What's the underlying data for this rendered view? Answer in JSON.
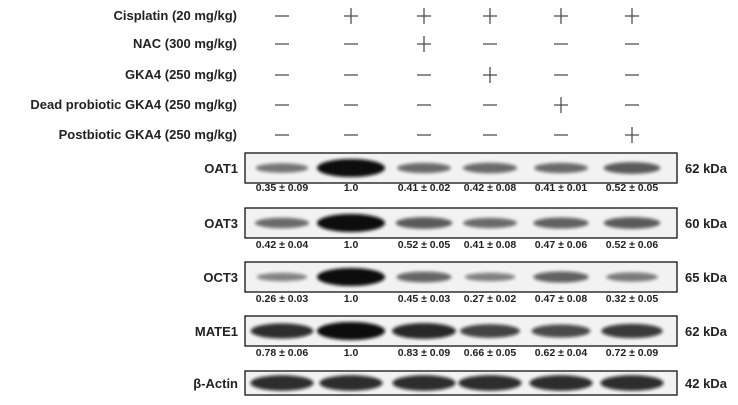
{
  "treatments": [
    {
      "label": "Cisplatin (20 mg/kg)",
      "signs": [
        "-",
        "+",
        "+",
        "+",
        "+",
        "+"
      ]
    },
    {
      "label": "NAC (300 mg/kg)",
      "signs": [
        "-",
        "-",
        "+",
        "-",
        "-",
        "-"
      ]
    },
    {
      "label": "GKA4 (250 mg/kg)",
      "signs": [
        "-",
        "-",
        "-",
        "+",
        "-",
        "-"
      ]
    },
    {
      "label": "Dead probiotic GKA4 (250 mg/kg)",
      "signs": [
        "-",
        "-",
        "-",
        "-",
        "+",
        "-"
      ]
    },
    {
      "label": "Postbiotic GKA4 (250 mg/kg)",
      "signs": [
        "-",
        "-",
        "-",
        "-",
        "-",
        "+"
      ]
    }
  ],
  "blots": [
    {
      "name": "OAT1",
      "kda": "62 kDa",
      "quant": [
        "0.35 ± 0.09",
        "1.0",
        "0.41 ± 0.02",
        "0.42 ± 0.08",
        "0.41 ± 0.01",
        "0.52 ± 0.05"
      ],
      "intensity": [
        0.35,
        1.0,
        0.41,
        0.42,
        0.41,
        0.52
      ]
    },
    {
      "name": "OAT3",
      "kda": "60 kDa",
      "quant": [
        "0.42 ± 0.04",
        "1.0",
        "0.52 ± 0.05",
        "0.41 ± 0.08",
        "0.47 ± 0.06",
        "0.52 ± 0.06"
      ],
      "intensity": [
        0.42,
        1.0,
        0.52,
        0.41,
        0.47,
        0.52
      ]
    },
    {
      "name": "OCT3",
      "kda": "65 kDa",
      "quant": [
        "0.26 ± 0.03",
        "1.0",
        "0.45 ± 0.03",
        "0.27 ± 0.02",
        "0.47 ± 0.08",
        "0.32 ± 0.05"
      ],
      "intensity": [
        0.26,
        1.0,
        0.45,
        0.27,
        0.47,
        0.32
      ]
    },
    {
      "name": "MATE1",
      "kda": "62 kDa",
      "quant": [
        "0.78 ± 0.06",
        "1.0",
        "0.83 ± 0.09",
        "0.66 ± 0.05",
        "0.62 ± 0.04",
        "0.72 ± 0.09"
      ],
      "intensity": [
        0.78,
        1.0,
        0.83,
        0.66,
        0.62,
        0.72
      ]
    },
    {
      "name": "β-Actin",
      "kda": "42 kDa",
      "quant": [],
      "intensity": [
        0.8,
        0.8,
        0.8,
        0.8,
        0.8,
        0.8
      ]
    }
  ],
  "colors": {
    "band": "#0b0b0b",
    "background": "#f2f2f2",
    "text": "#222222"
  }
}
